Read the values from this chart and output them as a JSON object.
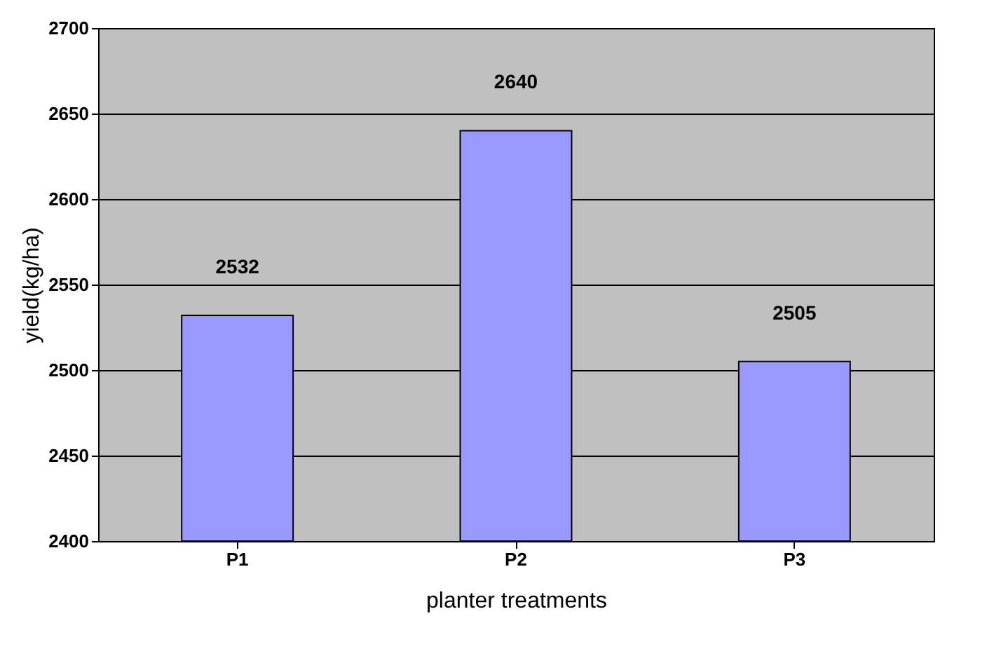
{
  "chart_data": {
    "type": "bar",
    "xlabel": "planter treatments",
    "ylabel": "yield(kg/ha)",
    "categories": [
      "P1",
      "P2",
      "P3"
    ],
    "values": [
      2532,
      2640,
      2505
    ],
    "color": "#9999ff",
    "ylim": [
      2400,
      2700
    ],
    "yticks": [
      2400,
      2450,
      2500,
      2550,
      2600,
      2650,
      2700
    ],
    "grid": "y",
    "data_labels": true
  }
}
